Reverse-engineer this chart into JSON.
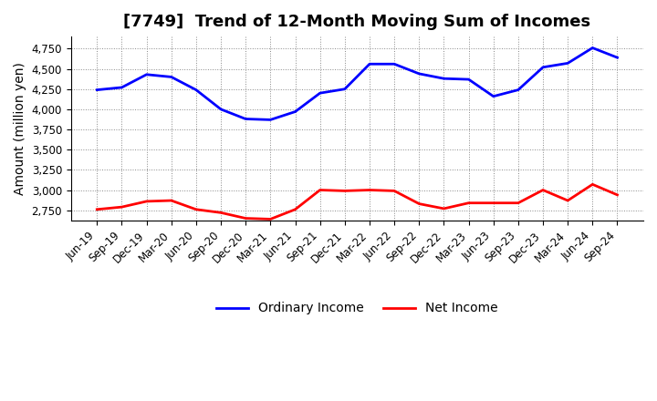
{
  "title": "[7749]  Trend of 12-Month Moving Sum of Incomes",
  "ylabel": "Amount (million yen)",
  "x_labels": [
    "Jun-19",
    "Sep-19",
    "Dec-19",
    "Mar-20",
    "Jun-20",
    "Sep-20",
    "Dec-20",
    "Mar-21",
    "Jun-21",
    "Sep-21",
    "Dec-21",
    "Mar-22",
    "Jun-22",
    "Sep-22",
    "Dec-22",
    "Mar-23",
    "Jun-23",
    "Sep-23",
    "Dec-23",
    "Mar-24",
    "Jun-24",
    "Sep-24"
  ],
  "ordinary_income": [
    4240,
    4270,
    4430,
    4400,
    4240,
    4000,
    3880,
    3870,
    3970,
    4200,
    4250,
    4560,
    4560,
    4440,
    4380,
    4370,
    4160,
    4240,
    4520,
    4570,
    4760,
    4640
  ],
  "net_income": [
    2760,
    2790,
    2860,
    2870,
    2760,
    2720,
    2650,
    2640,
    2760,
    3000,
    2990,
    3000,
    2990,
    2830,
    2770,
    2840,
    2840,
    2840,
    3000,
    2870,
    3070,
    2940
  ],
  "ordinary_income_color": "#0000ff",
  "net_income_color": "#ff0000",
  "background_color": "#ffffff",
  "plot_background_color": "#ffffff",
  "grid_color": "#888888",
  "ylim_min": 2620,
  "ylim_max": 4900,
  "yticks": [
    2750,
    3000,
    3250,
    3500,
    3750,
    4000,
    4250,
    4500,
    4750
  ],
  "line_width": 2.0,
  "title_fontsize": 13,
  "axis_label_fontsize": 10,
  "tick_fontsize": 8.5,
  "legend_fontsize": 10
}
